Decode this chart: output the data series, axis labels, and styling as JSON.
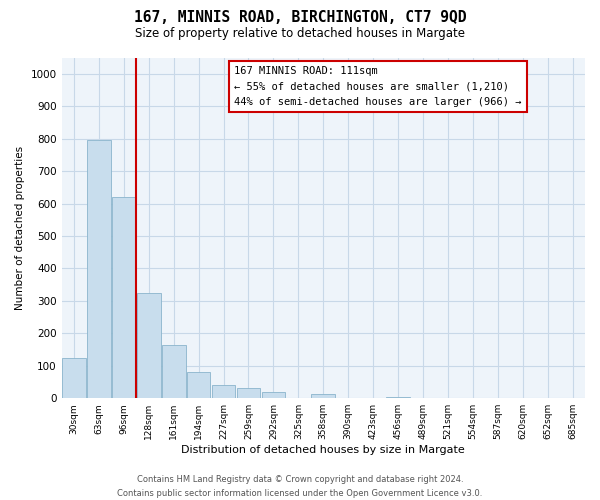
{
  "title": "167, MINNIS ROAD, BIRCHINGTON, CT7 9QD",
  "subtitle": "Size of property relative to detached houses in Margate",
  "xlabel": "Distribution of detached houses by size in Margate",
  "ylabel": "Number of detached properties",
  "bar_labels": [
    "30sqm",
    "63sqm",
    "96sqm",
    "128sqm",
    "161sqm",
    "194sqm",
    "227sqm",
    "259sqm",
    "292sqm",
    "325sqm",
    "358sqm",
    "390sqm",
    "423sqm",
    "456sqm",
    "489sqm",
    "521sqm",
    "554sqm",
    "587sqm",
    "620sqm",
    "652sqm",
    "685sqm"
  ],
  "bar_values": [
    125,
    795,
    620,
    325,
    163,
    80,
    42,
    30,
    18,
    0,
    12,
    0,
    0,
    5,
    0,
    0,
    0,
    0,
    0,
    0,
    0
  ],
  "bar_color": "#c8dded",
  "bar_edge_color": "#8ab4cc",
  "vline_x_idx": 2.5,
  "vline_color": "#cc0000",
  "ylim": [
    0,
    1050
  ],
  "yticks": [
    0,
    100,
    200,
    300,
    400,
    500,
    600,
    700,
    800,
    900,
    1000
  ],
  "annotation_title": "167 MINNIS ROAD: 111sqm",
  "annotation_line1": "← 55% of detached houses are smaller (1,210)",
  "annotation_line2": "44% of semi-detached houses are larger (966) →",
  "annotation_box_color": "#ffffff",
  "annotation_box_edge": "#cc0000",
  "footer_line1": "Contains HM Land Registry data © Crown copyright and database right 2024.",
  "footer_line2": "Contains public sector information licensed under the Open Government Licence v3.0.",
  "bg_color": "#ffffff",
  "grid_color": "#c8d8e8",
  "plot_bg_color": "#eef4fa"
}
